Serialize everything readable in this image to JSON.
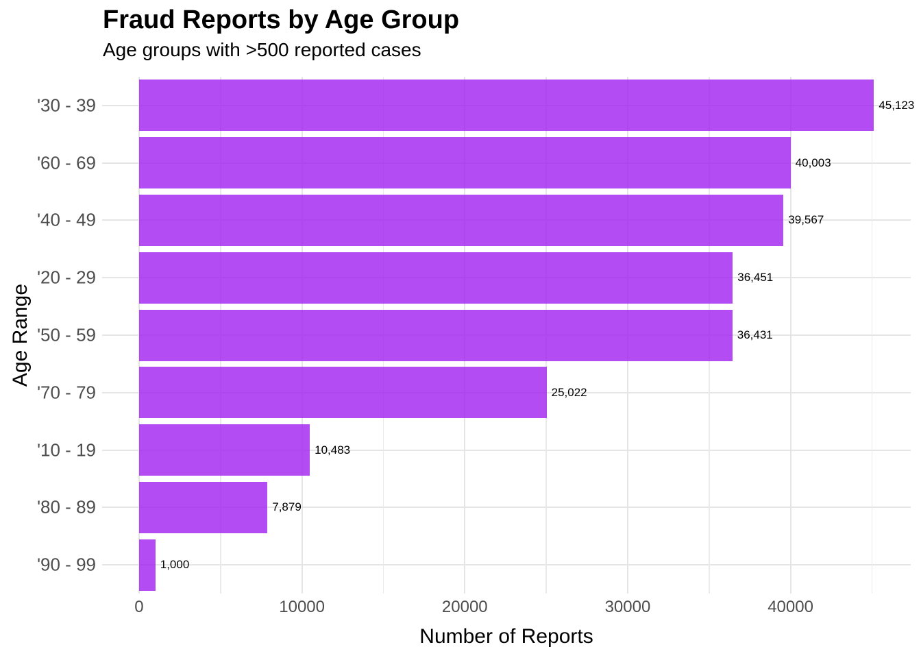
{
  "title": "Fraud Reports by Age Group",
  "subtitle": "Age groups with >500 reported cases",
  "chart_data": {
    "type": "bar",
    "orientation": "horizontal",
    "title": "Fraud Reports by Age Group",
    "subtitle": "Age groups with >500 reported cases",
    "xlabel": "Number of Reports",
    "ylabel": "Age Range",
    "categories": [
      "'30 - 39",
      "'60 - 69",
      "'40 - 49",
      "'20 - 29",
      "'50 - 59",
      "'70 - 79",
      "'10 - 19",
      "'80 - 89",
      "'90 - 99"
    ],
    "values": [
      45123,
      40003,
      39567,
      36451,
      36431,
      25022,
      10483,
      7879,
      1000
    ],
    "value_labels": [
      "45,123",
      "40,003",
      "39,567",
      "36,451",
      "36,431",
      "25,022",
      "10,483",
      "7,879",
      "1,000"
    ],
    "sorted": "descending",
    "xlim": [
      -2272,
      47381
    ],
    "x_major_ticks": [
      0,
      10000,
      20000,
      30000,
      40000
    ],
    "x_tick_labels": [
      "0",
      "10000",
      "20000",
      "30000",
      "40000"
    ],
    "x_minor_ticks": [
      5000,
      15000,
      25000,
      35000,
      45000
    ],
    "grid": "major+minor vertical, major horizontal",
    "legend": "none",
    "bar_fill": "#A020F0",
    "bar_alpha": 0.8,
    "bar_effective_color": "#b34df3",
    "gridline_color": "#e5e5e5",
    "tick_label_color": "#4d4d4d",
    "text_color": "#000000",
    "background": "#ffffff"
  }
}
